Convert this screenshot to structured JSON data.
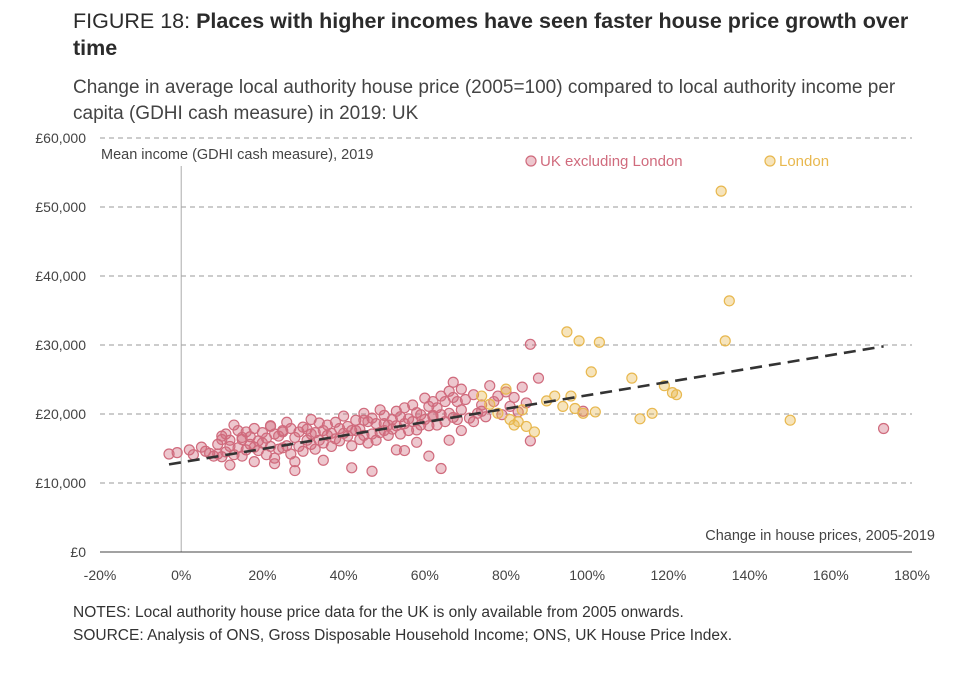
{
  "title": {
    "prefix": "FIGURE 18: ",
    "bold": "Places with higher incomes have seen faster house price growth over time"
  },
  "subtitle": "Change in average local authority house price (2005=100) compared to local authority income per capita (GDHI cash measure) in 2019: UK",
  "notes": {
    "notes_line": "NOTES: Local authority house price data for the UK is only available from 2005 onwards.",
    "source_line": "SOURCE: Analysis of ONS, Gross Disposable Household Income; ONS, UK House Price Index."
  },
  "colors": {
    "uk_excl_london": "#d06b7d",
    "london": "#e8b84f",
    "gridline": "#999999",
    "trendline": "#333333"
  },
  "chart_data": {
    "type": "scatter",
    "xlabel": "Change in house prices, 2005-2019",
    "ylabel": "Mean income (GDHI cash measure), 2019",
    "xlim": [
      -20,
      180
    ],
    "ylim": [
      0,
      60000
    ],
    "x_ticks": [
      "-20%",
      "0%",
      "20%",
      "40%",
      "60%",
      "80%",
      "100%",
      "120%",
      "140%",
      "160%",
      "180%"
    ],
    "y_ticks": [
      "£0",
      "£10,000",
      "£20,000",
      "£30,000",
      "£40,000",
      "£50,000",
      "£60,000"
    ],
    "grid": "horizontal dashed",
    "legend_position": "top-right",
    "trendline": {
      "style": "dashed",
      "x": [
        -3,
        173
      ],
      "y": [
        12700,
        29800
      ]
    },
    "series": [
      {
        "name": "UK excluding London",
        "color": "#d06b7d",
        "x": [
          -3,
          -1,
          2,
          3,
          5,
          6,
          7,
          8,
          9,
          9,
          10,
          10,
          11,
          11,
          12,
          12,
          13,
          13,
          14,
          14,
          15,
          15,
          16,
          16,
          17,
          17,
          18,
          18,
          19,
          19,
          20,
          20,
          21,
          21,
          22,
          22,
          23,
          23,
          24,
          24,
          25,
          25,
          26,
          26,
          27,
          27,
          28,
          28,
          29,
          29,
          30,
          30,
          31,
          31,
          32,
          32,
          33,
          33,
          34,
          34,
          35,
          35,
          36,
          36,
          37,
          37,
          38,
          38,
          39,
          39,
          40,
          40,
          41,
          41,
          42,
          42,
          43,
          43,
          44,
          44,
          45,
          45,
          46,
          46,
          47,
          47,
          48,
          48,
          49,
          49,
          50,
          50,
          51,
          51,
          52,
          52,
          53,
          53,
          54,
          54,
          55,
          55,
          56,
          56,
          57,
          57,
          58,
          58,
          59,
          59,
          60,
          60,
          61,
          61,
          62,
          62,
          63,
          63,
          64,
          64,
          65,
          65,
          66,
          66,
          67,
          67,
          68,
          68,
          69,
          69,
          70,
          71,
          72,
          73,
          74,
          75,
          76,
          77,
          78,
          79,
          80,
          81,
          82,
          83,
          84,
          85,
          86,
          88,
          99,
          12,
          18,
          23,
          28,
          35,
          42,
          47,
          55,
          58,
          61,
          64,
          66,
          69,
          72,
          25,
          15,
          10,
          22,
          32,
          45,
          50,
          53,
          62,
          67,
          74,
          86,
          173
        ],
        "y": [
          14200,
          14400,
          14800,
          14100,
          15200,
          14600,
          14300,
          13900,
          15600,
          14200,
          16800,
          13800,
          17100,
          14500,
          16200,
          15300,
          18400,
          14100,
          17600,
          15100,
          16300,
          13900,
          17400,
          14800,
          16700,
          15600,
          17900,
          15200,
          16100,
          14700,
          17300,
          15800,
          16500,
          14100,
          18200,
          15300,
          17100,
          13600,
          16800,
          14900,
          17600,
          15100,
          18800,
          15400,
          17900,
          14200,
          16600,
          13100,
          17400,
          15300,
          18100,
          14600,
          17800,
          16200,
          19200,
          15600,
          17300,
          14900,
          18700,
          16200,
          17600,
          15800,
          18400,
          16900,
          17200,
          15300,
          18800,
          16400,
          17900,
          16100,
          19700,
          17200,
          18200,
          16800,
          17600,
          15400,
          19100,
          17600,
          16300,
          17800,
          20100,
          16900,
          18900,
          15800,
          19400,
          17100,
          18600,
          16200,
          20600,
          17300,
          19800,
          17600,
          18400,
          16900,
          19200,
          17800,
          20400,
          18300,
          19600,
          17100,
          20900,
          18600,
          19300,
          17600,
          21300,
          18900,
          20200,
          17700,
          19900,
          18400,
          22300,
          19200,
          21100,
          18300,
          21800,
          19600,
          20900,
          18400,
          22600,
          19900,
          21800,
          18900,
          23300,
          20100,
          22400,
          19500,
          21800,
          19200,
          23600,
          20600,
          22100,
          19400,
          22800,
          20100,
          21300,
          19600,
          24100,
          21800,
          22600,
          19900,
          23200,
          21100,
          22400,
          20300,
          23900,
          21600,
          30100,
          25200,
          20400,
          12600,
          13100,
          12800,
          11800,
          13300,
          12200,
          11700,
          14700,
          15900,
          13900,
          12100,
          16200,
          17600,
          18900,
          17400,
          16600,
          16300,
          18300,
          17100,
          19100,
          18600,
          14800,
          19800,
          24600,
          20400,
          16100,
          17900
        ]
      },
      {
        "name": "London",
        "color": "#e8b84f",
        "x": [
          74,
          76,
          78,
          80,
          81,
          82,
          83,
          84,
          85,
          87,
          90,
          92,
          94,
          95,
          96,
          97,
          98,
          99,
          101,
          103,
          102,
          111,
          113,
          116,
          119,
          121,
          122,
          133,
          134,
          135,
          150
        ],
        "y": [
          22600,
          21400,
          20100,
          23600,
          19200,
          18400,
          18900,
          20600,
          18200,
          17400,
          21900,
          22600,
          21100,
          31900,
          22600,
          20800,
          30600,
          20100,
          26100,
          30400,
          20300,
          25200,
          19300,
          20100,
          24100,
          23100,
          22800,
          52300,
          30600,
          36400,
          19100
        ]
      }
    ]
  }
}
